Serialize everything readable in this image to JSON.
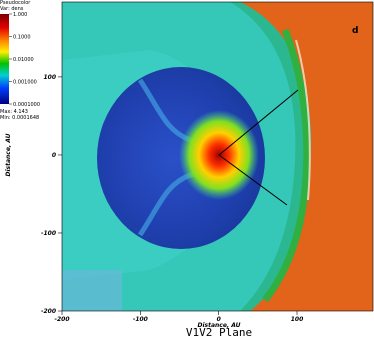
{
  "chart_data": {
    "type": "pseudocolor",
    "title": "V1V2 Plane",
    "panel_label": "d",
    "x_label": "Distance, AU",
    "y_label": "Distance, AU",
    "xlim": [
      -200,
      197
    ],
    "ylim": [
      -200,
      196
    ],
    "xticks": [
      -200,
      -100,
      0,
      100
    ],
    "yticks": [
      -200,
      -100,
      0,
      100
    ],
    "colorbar": {
      "title": "Pseudocolor",
      "variable": "Var: dens",
      "log_scale": true,
      "lim": [
        0.0001,
        1
      ],
      "ticks": [
        {
          "value": 1,
          "label": "1.000"
        },
        {
          "value": 0.1,
          "label": "0.1000"
        },
        {
          "value": 0.01,
          "label": "0.01000"
        },
        {
          "value": 0.001,
          "label": "0.001000"
        },
        {
          "value": 0.0001,
          "label": "0.0001000"
        }
      ],
      "max_label": "Max: 4.143",
      "min_label": "Min: 0.0001648"
    }
  }
}
